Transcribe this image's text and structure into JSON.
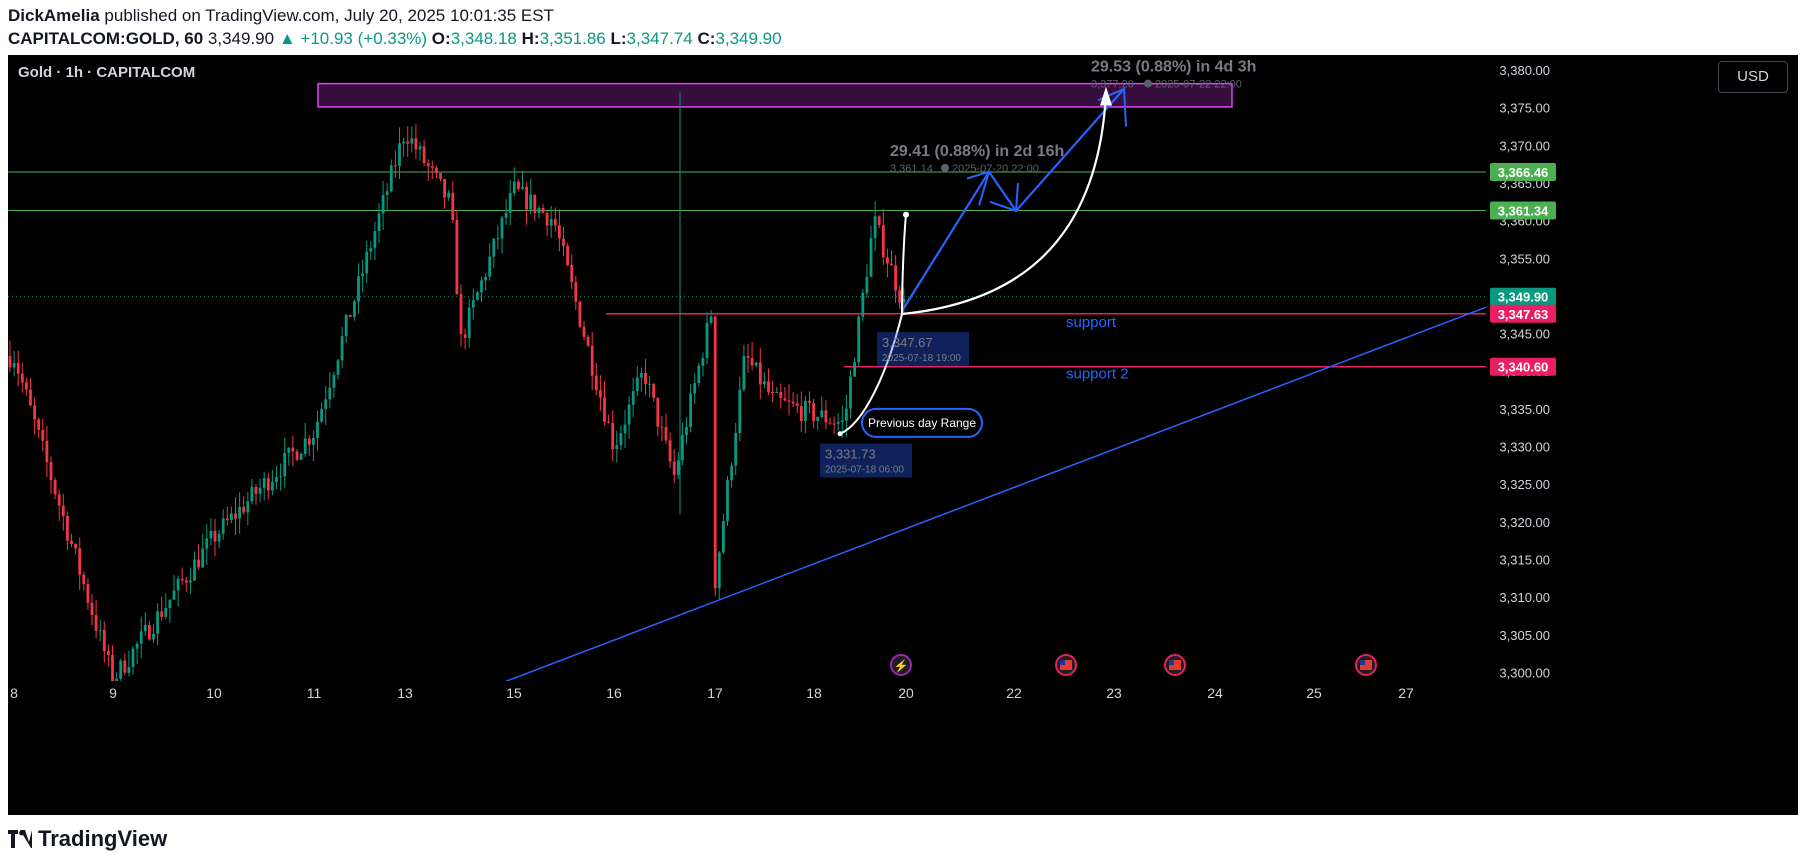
{
  "header": {
    "author": "DickAmelia",
    "published_text": "published on TradingView.com, July 20, 2025 10:01:35 EST",
    "symbol": "CAPITALCOM:GOLD, 60",
    "last": "3,349.90",
    "change": "+10.93 (+0.33%)",
    "o_label": "O:",
    "o_val": "3,348.18",
    "h_label": "H:",
    "h_val": "3,351.86",
    "l_label": "L:",
    "l_val": "3,347.74",
    "c_label": "C:",
    "c_val": "3,349.90"
  },
  "chart_title": "Gold · 1h · CAPITALCOM",
  "currency_button": "USD",
  "brand": "TradingView",
  "colors": {
    "up": "#089981",
    "down": "#f23645",
    "bg": "#000000",
    "trend": "#2962ff",
    "support": "#e91e63",
    "zone": "#e040fb",
    "green_level": "#4caf50"
  },
  "chart_data": {
    "type": "candlestick",
    "ylim": [
      3297,
      3382
    ],
    "y_ticks": [
      "3,380.00",
      "3,375.00",
      "3,370.00",
      "3,365.00",
      "3,360.00",
      "3,355.00",
      "3,350.00",
      "3,345.00",
      "3,340.00",
      "3,335.00",
      "3,330.00",
      "3,325.00",
      "3,320.00",
      "3,315.00",
      "3,310.00",
      "3,305.00",
      "3,300.00"
    ],
    "y_tick_values": [
      3380,
      3375,
      3370,
      3365,
      3360,
      3355,
      3350,
      3345,
      3340,
      3335,
      3330,
      3325,
      3320,
      3315,
      3310,
      3305,
      3300
    ],
    "x_ticks": [
      "8",
      "9",
      "10",
      "11",
      "13",
      "15",
      "16",
      "17",
      "18",
      "20",
      "22",
      "23",
      "24",
      "25",
      "27"
    ],
    "price_labels": [
      {
        "text": "3,366.46",
        "value": 3366.46,
        "color": "#4caf50"
      },
      {
        "text": "3,361.34",
        "value": 3361.34,
        "color": "#4caf50"
      },
      {
        "text": "3,349.90",
        "value": 3349.9,
        "color": "#089981"
      },
      {
        "text": "3,347.63",
        "value": 3347.63,
        "color": "#e91e63"
      },
      {
        "text": "3,340.60",
        "value": 3340.6,
        "color": "#e91e63"
      }
    ],
    "anchors": [
      {
        "day": "8",
        "value": 3342
      },
      {
        "day": "9",
        "value": 3299
      },
      {
        "day": "10",
        "value": 3318
      },
      {
        "day": "11",
        "value": 3332
      },
      {
        "day": "12",
        "value": 3352
      },
      {
        "day": "13",
        "value": 3372
      },
      {
        "day": "13",
        "value": 3362
      },
      {
        "day": "14",
        "value": 3344
      },
      {
        "day": "15",
        "value": 3364
      },
      {
        "day": "15",
        "value": 3360
      },
      {
        "day": "16",
        "value": 3330
      },
      {
        "day": "16",
        "value": 3340
      },
      {
        "day": "16",
        "value": 3326
      },
      {
        "day": "17",
        "value": 3350
      },
      {
        "day": "17",
        "value": 3342
      },
      {
        "day": "17",
        "value": 3312
      },
      {
        "day": "18",
        "value": 3336
      },
      {
        "day": "18",
        "value": 3333
      },
      {
        "day": "18",
        "value": 3360
      },
      {
        "day": "20",
        "value": 3348
      }
    ],
    "annotations": {
      "label_support": "support",
      "label_support2": "support 2",
      "label_range": "Previous day Range",
      "range1_main": "29.53 (0.88%) in 4d 3h",
      "range1_sub_price": "3,377.20",
      "range1_sub_time": "2025-07-22  22:00",
      "range2_main": "29.41 (0.88%) in 2d 16h",
      "range2_sub_price": "3,361.14",
      "range2_sub_time": "2025-07-20  22:00",
      "mark_high_price": "3,347.67",
      "mark_high_time": "2025-07-18 19:00",
      "mark_low_price": "3,331.73",
      "mark_low_time": "2025-07-18 06:00"
    }
  }
}
